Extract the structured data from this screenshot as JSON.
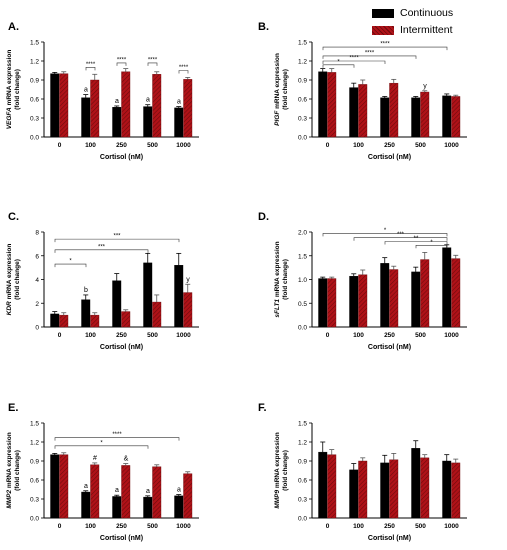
{
  "legend": {
    "continuous": "Continuous",
    "intermittent": "Intermittent"
  },
  "colors": {
    "continuous": "#000000",
    "intermittent": "#b01218",
    "intermittent_dark": "#6e0a0d"
  },
  "chart_data": [
    {
      "panel": "A.",
      "type": "bar",
      "categories": [
        "0",
        "100",
        "250",
        "500",
        "1000"
      ],
      "xlabel": "Cortisol (nM)",
      "ylabel_gene": "VEGFA",
      "ylabel_rest": " mRNA expression",
      "ylabel_unit": "(fold change)",
      "ylim": [
        0,
        1.5
      ],
      "yticks": [
        "0.0",
        "0.3",
        "0.6",
        "0.9",
        "1.2",
        "1.5"
      ],
      "series": [
        {
          "name": "Continuous",
          "values": [
            1.0,
            0.62,
            0.47,
            0.48,
            0.46
          ],
          "errors": [
            0.02,
            0.05,
            0.02,
            0.03,
            0.02
          ]
        },
        {
          "name": "Intermittent",
          "values": [
            1.0,
            0.9,
            1.03,
            0.99,
            0.91
          ],
          "errors": [
            0.03,
            0.09,
            0.05,
            0.04,
            0.03
          ]
        }
      ],
      "bar_labels": [
        {
          "category": 1,
          "series": 0,
          "text": "a"
        },
        {
          "category": 2,
          "series": 0,
          "text": "a"
        },
        {
          "category": 3,
          "series": 0,
          "text": "a"
        },
        {
          "category": 4,
          "series": 0,
          "text": "a"
        }
      ],
      "comparisons": [
        {
          "from": [
            1,
            0
          ],
          "to": [
            1,
            1
          ],
          "y": 1.1,
          "text": "****"
        },
        {
          "from": [
            2,
            0
          ],
          "to": [
            2,
            1
          ],
          "y": 1.17,
          "text": "****"
        },
        {
          "from": [
            3,
            0
          ],
          "to": [
            3,
            1
          ],
          "y": 1.17,
          "text": "****"
        },
        {
          "from": [
            4,
            0
          ],
          "to": [
            4,
            1
          ],
          "y": 1.05,
          "text": "****"
        }
      ]
    },
    {
      "panel": "B.",
      "type": "bar",
      "categories": [
        "0",
        "100",
        "250",
        "500",
        "1000"
      ],
      "xlabel": "Cortisol (nM)",
      "ylabel_gene": "PlGF",
      "ylabel_rest": " mRNA expression",
      "ylabel_unit": "(fold change)",
      "ylim": [
        0,
        1.5
      ],
      "yticks": [
        "0.0",
        "0.3",
        "0.6",
        "0.9",
        "1.2",
        "1.5"
      ],
      "series": [
        {
          "name": "Continuous",
          "values": [
            1.03,
            0.78,
            0.62,
            0.62,
            0.65
          ],
          "errors": [
            0.05,
            0.07,
            0.02,
            0.02,
            0.03
          ]
        },
        {
          "name": "Intermittent",
          "values": [
            1.02,
            0.83,
            0.85,
            0.71,
            0.64
          ],
          "errors": [
            0.06,
            0.07,
            0.06,
            0.02,
            0.02
          ]
        }
      ],
      "bar_labels": [
        {
          "category": 3,
          "series": 1,
          "text": "y"
        }
      ],
      "comparisons": [
        {
          "from": [
            0,
            0
          ],
          "to": [
            1,
            0
          ],
          "y": 1.14,
          "text": "*"
        },
        {
          "from": [
            0,
            0
          ],
          "to": [
            2,
            0
          ],
          "y": 1.2,
          "text": "****"
        },
        {
          "from": [
            0,
            0
          ],
          "to": [
            3,
            0
          ],
          "y": 1.28,
          "text": "****"
        },
        {
          "from": [
            0,
            0
          ],
          "to": [
            4,
            0
          ],
          "y": 1.42,
          "text": "****"
        }
      ]
    },
    {
      "panel": "C.",
      "type": "bar",
      "categories": [
        "0",
        "100",
        "250",
        "500",
        "1000"
      ],
      "xlabel": "Cortisol (nM)",
      "ylabel_gene": "KDR",
      "ylabel_rest": " mRNA expression",
      "ylabel_unit": "(fold change)",
      "ylim": [
        0,
        8
      ],
      "yticks": [
        "0",
        "2",
        "4",
        "6",
        "8"
      ],
      "series": [
        {
          "name": "Continuous",
          "values": [
            1.1,
            2.3,
            3.9,
            5.4,
            5.2
          ],
          "errors": [
            0.2,
            0.4,
            0.6,
            0.8,
            1.0
          ]
        },
        {
          "name": "Intermittent",
          "values": [
            1.0,
            1.0,
            1.3,
            2.1,
            2.9
          ],
          "errors": [
            0.2,
            0.2,
            0.15,
            0.6,
            0.7
          ]
        }
      ],
      "bar_labels": [
        {
          "category": 1,
          "series": 0,
          "text": "b"
        },
        {
          "category": 4,
          "series": 1,
          "text": "y"
        }
      ],
      "comparisons": [
        {
          "from": [
            0,
            0
          ],
          "to": [
            1,
            0
          ],
          "y": 5.3,
          "text": "*"
        },
        {
          "from": [
            0,
            0
          ],
          "to": [
            3,
            0
          ],
          "y": 6.5,
          "text": "***"
        },
        {
          "from": [
            0,
            0
          ],
          "to": [
            4,
            0
          ],
          "y": 7.4,
          "text": "***"
        }
      ]
    },
    {
      "panel": "D.",
      "type": "bar",
      "categories": [
        "0",
        "100",
        "250",
        "500",
        "1000"
      ],
      "xlabel": "Cortisol (nM)",
      "ylabel_gene": "sFLT1",
      "ylabel_rest": " mRNA expression",
      "ylabel_unit": "(fold change)",
      "ylim": [
        0,
        2.0
      ],
      "yticks": [
        "0.0",
        "0.5",
        "1.0",
        "1.5",
        "2.0"
      ],
      "series": [
        {
          "name": "Continuous",
          "values": [
            1.02,
            1.07,
            1.34,
            1.16,
            1.67
          ],
          "errors": [
            0.03,
            0.05,
            0.12,
            0.1,
            0.06
          ]
        },
        {
          "name": "Intermittent",
          "values": [
            1.02,
            1.1,
            1.21,
            1.42,
            1.44
          ],
          "errors": [
            0.03,
            0.1,
            0.07,
            0.15,
            0.07
          ]
        }
      ],
      "bar_labels": [],
      "comparisons": [
        {
          "from": [
            0,
            0
          ],
          "to": [
            4,
            0
          ],
          "y": 1.97,
          "text": "*"
        },
        {
          "from": [
            1,
            0
          ],
          "to": [
            4,
            0
          ],
          "y": 1.88,
          "text": "***"
        },
        {
          "from": [
            2,
            0
          ],
          "to": [
            4,
            0
          ],
          "y": 1.8,
          "text": "**"
        },
        {
          "from": [
            3,
            0
          ],
          "to": [
            4,
            0
          ],
          "y": 1.72,
          "text": "*"
        }
      ]
    },
    {
      "panel": "E.",
      "type": "bar",
      "categories": [
        "0",
        "100",
        "250",
        "500",
        "1000"
      ],
      "xlabel": "Cortisol (nM)",
      "ylabel_gene": "MMP2",
      "ylabel_rest": " mRNA expression",
      "ylabel_unit": "(fold change)",
      "ylim": [
        0,
        1.5
      ],
      "yticks": [
        "0.0",
        "0.3",
        "0.6",
        "0.9",
        "1.2",
        "1.5"
      ],
      "series": [
        {
          "name": "Continuous",
          "values": [
            1.0,
            0.41,
            0.34,
            0.33,
            0.35
          ],
          "errors": [
            0.02,
            0.02,
            0.02,
            0.02,
            0.02
          ]
        },
        {
          "name": "Intermittent",
          "values": [
            1.0,
            0.84,
            0.83,
            0.81,
            0.7
          ],
          "errors": [
            0.03,
            0.03,
            0.03,
            0.03,
            0.03
          ]
        }
      ],
      "bar_labels": [
        {
          "category": 1,
          "series": 0,
          "text": "a"
        },
        {
          "category": 1,
          "series": 1,
          "text": "#"
        },
        {
          "category": 2,
          "series": 0,
          "text": "a"
        },
        {
          "category": 2,
          "series": 1,
          "text": "&"
        },
        {
          "category": 3,
          "series": 0,
          "text": "a"
        },
        {
          "category": 4,
          "series": 0,
          "text": "a"
        }
      ],
      "comparisons": [
        {
          "from": [
            0,
            0
          ],
          "to": [
            3,
            0
          ],
          "y": 1.14,
          "text": "*"
        },
        {
          "from": [
            0,
            0
          ],
          "to": [
            4,
            0
          ],
          "y": 1.27,
          "text": "****"
        }
      ]
    },
    {
      "panel": "F.",
      "type": "bar",
      "categories": [
        "0",
        "100",
        "250",
        "500",
        "1000"
      ],
      "xlabel": "Cortisol (nM)",
      "ylabel_gene": "MMP9",
      "ylabel_rest": " mRNA expression",
      "ylabel_unit": "(fold change)",
      "ylim": [
        0,
        1.5
      ],
      "yticks": [
        "0.0",
        "0.3",
        "0.6",
        "0.9",
        "1.2",
        "1.5"
      ],
      "series": [
        {
          "name": "Continuous",
          "values": [
            1.04,
            0.76,
            0.87,
            1.1,
            0.9
          ],
          "errors": [
            0.16,
            0.1,
            0.12,
            0.12,
            0.1
          ]
        },
        {
          "name": "Intermittent",
          "values": [
            1.0,
            0.9,
            0.92,
            0.95,
            0.87
          ],
          "errors": [
            0.08,
            0.05,
            0.1,
            0.05,
            0.06
          ]
        }
      ],
      "bar_labels": [],
      "comparisons": []
    }
  ]
}
